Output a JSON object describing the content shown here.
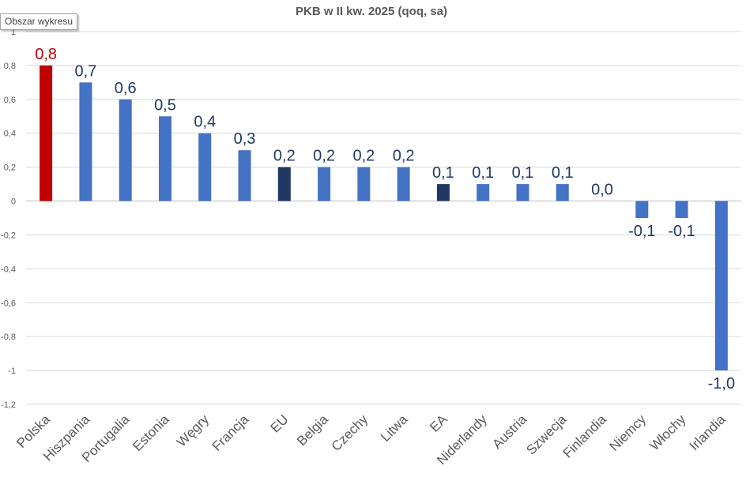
{
  "tooltip": {
    "text": "Obszar wykresu"
  },
  "chart_data": {
    "type": "bar",
    "title": "PKB w II kw. 2025 (qoq, sa)",
    "xlabel": "",
    "ylabel": "",
    "ylim": [
      -1.2,
      1
    ],
    "ytick_step": 0.2,
    "grid": true,
    "legend": "none",
    "categories": [
      "Polska",
      "Hiszpania",
      "Portugalia",
      "Estonia",
      "Węgry",
      "Francja",
      "EU",
      "Belgia",
      "Czechy",
      "Litwa",
      "EA",
      "Niderlandy",
      "Austria",
      "Szwecja",
      "Finlandia",
      "Niemcy",
      "Włochy",
      "Irlandia"
    ],
    "values": [
      0.8,
      0.7,
      0.6,
      0.5,
      0.4,
      0.3,
      0.2,
      0.2,
      0.2,
      0.2,
      0.1,
      0.1,
      0.1,
      0.1,
      0.0,
      -0.1,
      -0.1,
      -1.0
    ],
    "data_labels": [
      "0,8",
      "0,7",
      "0,6",
      "0,5",
      "0,4",
      "0,3",
      "0,2",
      "0,2",
      "0,2",
      "0,2",
      "0,1",
      "0,1",
      "0,1",
      "0,1",
      "0,0",
      "-0,1",
      "-0,1",
      "-1,0"
    ],
    "bar_colors": [
      "#c00000",
      "#4472c4",
      "#4472c4",
      "#4472c4",
      "#4472c4",
      "#4472c4",
      "#1f3864",
      "#4472c4",
      "#4472c4",
      "#4472c4",
      "#1f3864",
      "#4472c4",
      "#4472c4",
      "#4472c4",
      "#4472c4",
      "#4472c4",
      "#4472c4",
      "#4472c4"
    ],
    "highlight_label_color": "#c00000",
    "label_color": "#1f3864"
  }
}
